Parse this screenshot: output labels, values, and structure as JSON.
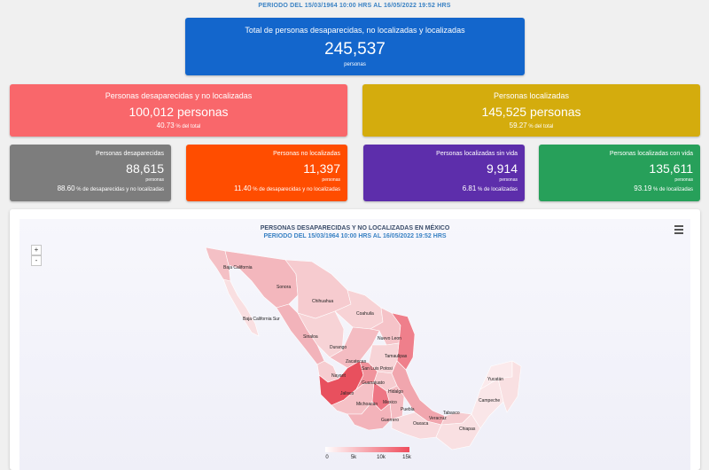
{
  "period_top": "PERIODO DEL 15/03/1964 10:00 HRS AL 16/05/2022 19:52 HRS",
  "total": {
    "title": "Total de personas desaparecidas, no localizadas y localizadas",
    "value": "245,537",
    "unit": "personas"
  },
  "desaparecidas": {
    "title": "Personas desaparecidas y no localizadas",
    "value": "100,012 personas",
    "pct": "40.73",
    "pct_suffix": "% del total"
  },
  "localizadas": {
    "title": "Personas localizadas",
    "value": "145,525 personas",
    "pct": "59.27",
    "pct_suffix": "% del total"
  },
  "small_cards": [
    {
      "title": "Personas desaparecidas",
      "value": "88,615",
      "unit": "personas",
      "pct": "88.60",
      "pct_suffix": "% de desaparecidas y no localizadas",
      "color": "#7d7d7d"
    },
    {
      "title": "Personas no localizadas",
      "value": "11,397",
      "unit": "personas",
      "pct": "11.40",
      "pct_suffix": "% de desaparecidas y no localizadas",
      "color": "#ff4d00"
    },
    {
      "title": "Personas localizadas sin vida",
      "value": "9,914",
      "unit": "personas",
      "pct": "6.81",
      "pct_suffix": "% de localizadas",
      "color": "#5d2eab"
    },
    {
      "title": "Personas localizadas con vida",
      "value": "135,611",
      "unit": "personas",
      "pct": "93.19",
      "pct_suffix": "% de localizadas",
      "color": "#27a05a"
    }
  ],
  "map": {
    "title": "PERSONAS DESAPARECIDAS Y NO LOCALIZADAS EN MÉXICO",
    "subtitle": "PERIODO DEL 15/03/1964 10:00 HRS AL 16/05/2022 19:52 HRS",
    "zoom_in": "+",
    "zoom_out": "-",
    "states": {
      "baja_california": "Baja California",
      "sonora": "Sonora",
      "chihuahua": "Chihuahua",
      "bcs": "Baja California Sur",
      "coahuila": "Coahuila",
      "sinaloa": "Sinaloa",
      "nuevo_leon": "Nuevo Leon",
      "durango": "Durango",
      "tamaulipas": "Tamaulipas",
      "zacatecas": "Zacatecas",
      "slp": "San Luis Potosi",
      "yucatan": "Yucatán",
      "nayarit": "Nayarit",
      "guanajuato": "Guanajuato",
      "hidalgo": "Hidalgo",
      "jalisco": "Jalisco",
      "campeche": "Campeche",
      "michoacan": "Michoacán",
      "mexico": "Mexico",
      "tabasco": "Tabasco",
      "puebla": "Puebla",
      "veracruz": "Veracruz",
      "guerrero": "Guerrero",
      "oaxaca": "Oaxaca",
      "chiapas": "Chiapas"
    },
    "legend": {
      "labels": [
        "0",
        "5k",
        "10k",
        "15k"
      ],
      "color_min": "#ffffff",
      "color_max": "#ef4c5c"
    }
  }
}
